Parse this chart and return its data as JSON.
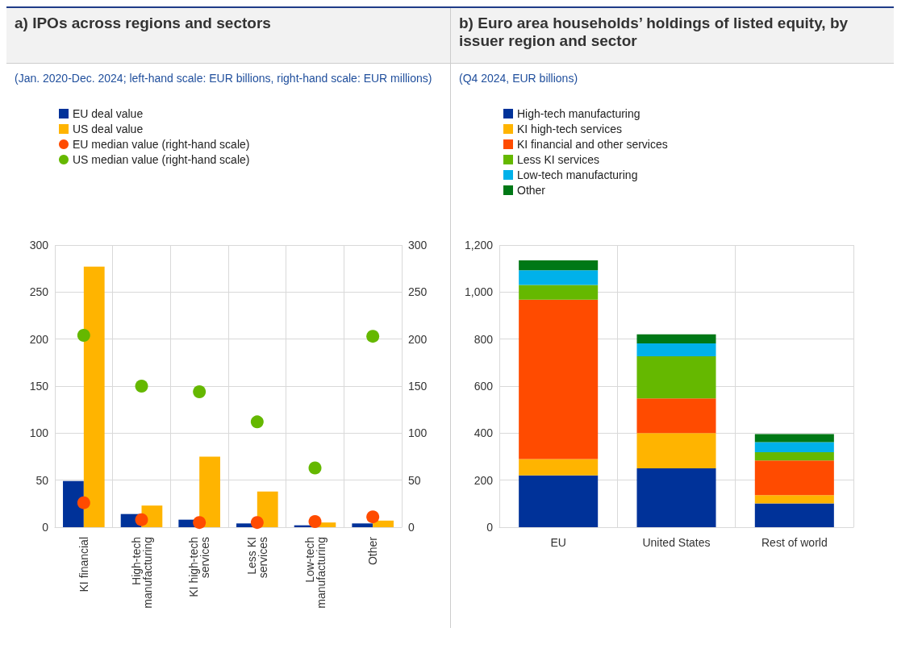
{
  "chart_data": [
    {
      "type": "bar",
      "title": "a) IPOs across regions and sectors",
      "subtitle": "(Jan. 2020-Dec. 2024; left-hand scale: EUR billions, right-hand scale: EUR millions)",
      "categories": [
        "KI financial",
        "High-tech\nmanufacturing",
        "KI high-tech\nservices",
        "Less KI\nservices",
        "Low-tech\nmanufacturing",
        "Other"
      ],
      "series": [
        {
          "name": "EU deal value",
          "color": "#003299",
          "values": [
            49,
            14,
            8,
            4,
            2,
            4
          ]
        },
        {
          "name": "US deal value",
          "color": "#ffb400",
          "values": [
            277,
            23,
            75,
            38,
            5,
            7
          ]
        },
        {
          "name": "EU median value (right-hand scale)",
          "type": "scatter",
          "axis": "y2",
          "color": "#ff4b00",
          "values": [
            26,
            8,
            5,
            5,
            6,
            11
          ]
        },
        {
          "name": "US median value (right-hand scale)",
          "type": "scatter",
          "axis": "y2",
          "color": "#65b800",
          "values": [
            204,
            150,
            144,
            112,
            63,
            203
          ]
        }
      ],
      "ylim": [
        0,
        300
      ],
      "yticks": [
        0,
        50,
        100,
        150,
        200,
        250,
        300
      ],
      "y2lim": [
        0,
        300
      ],
      "y2ticks": [
        0,
        50,
        100,
        150,
        200,
        250,
        300
      ],
      "grid": true,
      "legend": "top left",
      "marker": "circle"
    },
    {
      "type": "bar",
      "title": "b) Euro area households’ holdings of listed equity, by issuer region and sector",
      "subtitle": "(Q4 2024, EUR billions)",
      "categories": [
        "EU",
        "United States",
        "Rest of world"
      ],
      "stacked": true,
      "series": [
        {
          "name": "High-tech manufacturing",
          "color": "#003299",
          "values": [
            220,
            250,
            101
          ]
        },
        {
          "name": "KI high-tech services",
          "color": "#ffb400",
          "values": [
            70,
            150,
            35
          ]
        },
        {
          "name": "KI financial and other services",
          "color": "#ff4b00",
          "values": [
            678,
            148,
            148
          ]
        },
        {
          "name": "Less KI services",
          "color": "#65b800",
          "values": [
            62,
            179,
            35
          ]
        },
        {
          "name": "Low-tech manufacturing",
          "color": "#00b1ea",
          "values": [
            63,
            55,
            43
          ]
        },
        {
          "name": "Other",
          "color": "#007816",
          "values": [
            42,
            38,
            34
          ]
        }
      ],
      "ylim": [
        0,
        1200
      ],
      "yticks": [
        {
          "value": 0,
          "label": "0"
        },
        {
          "value": 200,
          "label": "200"
        },
        {
          "value": 400,
          "label": "400"
        },
        {
          "value": 600,
          "label": "600"
        },
        {
          "value": 800,
          "label": "800"
        },
        {
          "value": 1000,
          "label": "1,000"
        },
        {
          "value": 1200,
          "label": "1,200"
        }
      ],
      "grid": true,
      "legend": "top left"
    }
  ]
}
